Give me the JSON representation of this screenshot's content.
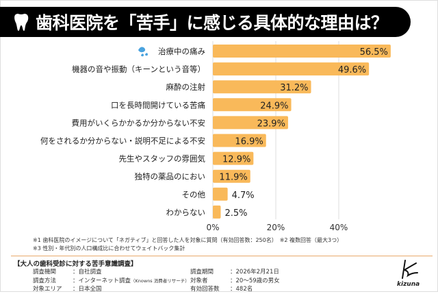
{
  "title": "歯科医院を「苦手」に感じる具体的な理由は？",
  "chart_data": {
    "type": "bar",
    "orientation": "horizontal",
    "categories": [
      "治療中の痛み",
      "機器の音や振動（キーンという音等）",
      "麻酔の注射",
      "口を長時間開けている苦痛",
      "費用がいくらかかるか分からない不安",
      "何をされるか分からない・説明不足による不安",
      "先生やスタッフの雰囲気",
      "独特の薬品のにおい",
      "その他",
      "わからない"
    ],
    "values": [
      56.5,
      49.6,
      31.2,
      24.9,
      23.9,
      16.9,
      12.9,
      11.9,
      4.7,
      2.5
    ],
    "data_labels": [
      "56.5%",
      "49.6%",
      "31.2%",
      "24.9%",
      "23.9%",
      "16.9%",
      "12.9%",
      "11.9%",
      "4.7%",
      "2.5%"
    ],
    "xlim": [
      0,
      60
    ],
    "ticks": [
      "0%",
      "20%",
      "40%"
    ],
    "tick_values": [
      0,
      20,
      40
    ],
    "grid": true,
    "bar_color": "#f9b95a",
    "first_icon": "sweat-drop-icon",
    "icon_color": "#4aa3df"
  },
  "notes": [
    "※1 歯科医院のイメージについて「ネガティブ」と回答した人を対象に質問（有効回答数：250名）　※2 複数回答（最大3つ）",
    "※3 性別・年代別の人口構成比に合わせてウェイトバック集計"
  ],
  "survey": {
    "title": "【大人の歯科受診に対する苦手意識調査】",
    "left": [
      {
        "k": "調査機関",
        "v": "：自社調査"
      },
      {
        "k": "調査方法",
        "v": "：インターネット調査",
        "sub": "（Knowns 消費者リサーチ）"
      },
      {
        "k": "対象エリア",
        "v": "：日本全国"
      }
    ],
    "right": [
      {
        "k": "調査期間",
        "v": "：2026年2月21日"
      },
      {
        "k": "対象者",
        "v": "：20～59歳の男女"
      },
      {
        "k": "有効回答数",
        "v": "：482名"
      }
    ]
  },
  "logo": "kizuna"
}
